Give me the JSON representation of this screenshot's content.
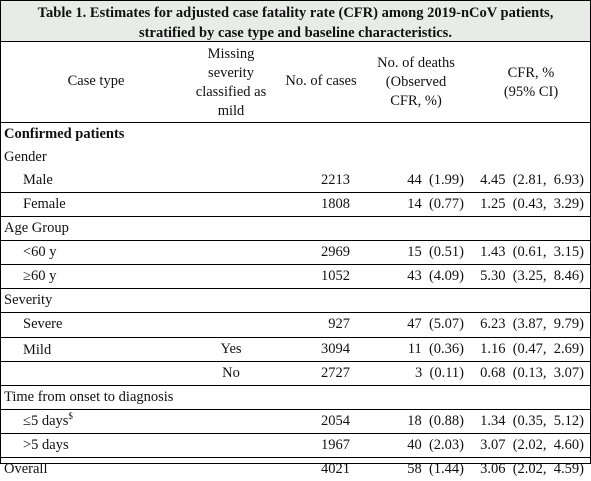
{
  "caption": {
    "line1": "Table 1. Estimates for adjusted case fatality rate (CFR) among 2019-nCoV patients,",
    "line2": "stratified by case type and baseline characteristics."
  },
  "headers": {
    "case_type": "Case type",
    "missing_1": "Missing",
    "missing_2": "severity",
    "missing_3": "classified as",
    "missing_4": "mild",
    "cases": "No. of cases",
    "deaths_1": "No. of deaths",
    "deaths_2": "(Observed",
    "deaths_3": "CFR, %)",
    "cfr_1": "CFR, %",
    "cfr_2": "(95% CI)"
  },
  "rows": [
    {
      "label": "Confirmed patients",
      "missing": "",
      "cases": "",
      "deaths": "",
      "cfr": ""
    },
    {
      "label": "Gender",
      "missing": "",
      "cases": "",
      "deaths": "",
      "cfr": ""
    },
    {
      "label": "Male",
      "missing": "",
      "cases": "2213",
      "deaths": "44  (1.99)",
      "cfr": "4.45  (2.81,  6.93)"
    },
    {
      "label": "Female",
      "missing": "",
      "cases": "1808",
      "deaths": "14  (0.77)",
      "cfr": "1.25  (0.43,  3.29)"
    },
    {
      "label": "Age Group",
      "missing": "",
      "cases": "",
      "deaths": "",
      "cfr": ""
    },
    {
      "label": "<60 y",
      "missing": "",
      "cases": "2969",
      "deaths": "15  (0.51)",
      "cfr": "1.43  (0.61,  3.15)"
    },
    {
      "label": "≥60 y",
      "missing": "",
      "cases": "1052",
      "deaths": "43  (4.09)",
      "cfr": "5.30  (3.25,  8.46)"
    },
    {
      "label": "Severity",
      "missing": "",
      "cases": "",
      "deaths": "",
      "cfr": ""
    },
    {
      "label": "Severe",
      "missing": "",
      "cases": "927",
      "deaths": "47  (5.07)",
      "cfr": "6.23  (3.87,  9.79)"
    },
    {
      "label": "",
      "missing": "Yes",
      "cases": "3094",
      "deaths": "11  (0.36)",
      "cfr": "1.16  (0.47,  2.69)"
    },
    {
      "label": "",
      "missing": "No",
      "cases": "2727",
      "deaths": "3  (0.11)",
      "cfr": "0.68  (0.13,  3.07)"
    },
    {
      "label": "Time from onset to diagnosis",
      "missing": "",
      "cases": "",
      "deaths": "",
      "cfr": ""
    },
    {
      "label": "≤5 days",
      "sup": "$",
      "missing": "",
      "cases": "2054",
      "deaths": "18  (0.88)",
      "cfr": "1.34  (0.35,  5.12)"
    },
    {
      "label": ">5 days",
      "missing": "",
      "cases": "1967",
      "deaths": "40  (2.03)",
      "cfr": "3.07  (2.02,  4.60)"
    },
    {
      "label": "Overall",
      "missing": "",
      "cases": "4021",
      "deaths": "58  (1.44)",
      "cfr": "3.06  (2.02,  4.59)"
    }
  ],
  "mild_label": "Mild"
}
